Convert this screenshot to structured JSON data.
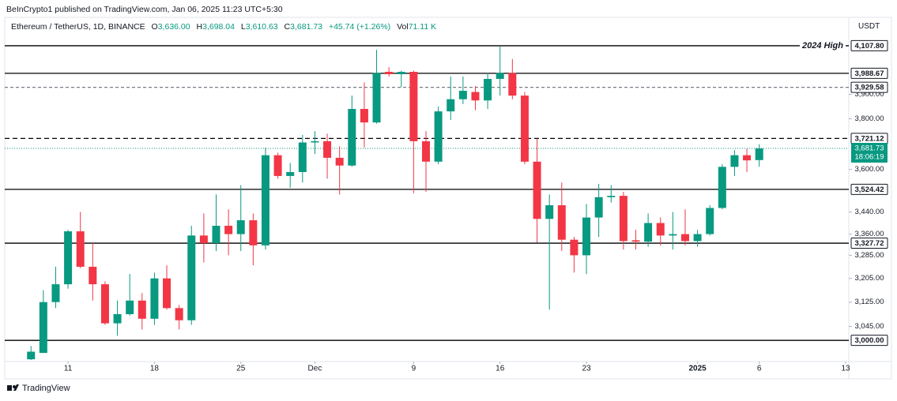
{
  "publisher": "BeInCrypto1 published on TradingView.com, Jan 06, 2025 11:23 UTC+5:30",
  "legend": {
    "symbol": "Ethereum / TetherUS, 1D, BINANCE",
    "ohlc": [
      {
        "key": "O",
        "value": "3,636.00"
      },
      {
        "key": "H",
        "value": "3,698.04"
      },
      {
        "key": "L",
        "value": "3,610.63"
      },
      {
        "key": "C",
        "value": "3,681.73"
      }
    ],
    "change": "+45.74 (+1.26%)",
    "vol_key": "Vol",
    "vol": "71.11 K"
  },
  "currency": "USDT",
  "footer": "TradingView",
  "chart_data": {
    "type": "candlestick",
    "log": true,
    "grid": false,
    "up_color": "#089981",
    "down_color": "#f23645",
    "x": [
      "2024-11-08",
      "2024-11-09",
      "2024-11-10",
      "2024-11-11",
      "2024-11-12",
      "2024-11-13",
      "2024-11-14",
      "2024-11-15",
      "2024-11-16",
      "2024-11-17",
      "2024-11-18",
      "2024-11-19",
      "2024-11-20",
      "2024-11-21",
      "2024-11-22",
      "2024-11-23",
      "2024-11-24",
      "2024-11-25",
      "2024-11-26",
      "2024-11-27",
      "2024-11-28",
      "2024-11-29",
      "2024-11-30",
      "2024-12-01",
      "2024-12-02",
      "2024-12-03",
      "2024-12-04",
      "2024-12-05",
      "2024-12-06",
      "2024-12-07",
      "2024-12-08",
      "2024-12-09",
      "2024-12-10",
      "2024-12-11",
      "2024-12-12",
      "2024-12-13",
      "2024-12-14",
      "2024-12-15",
      "2024-12-16",
      "2024-12-17",
      "2024-12-18",
      "2024-12-19",
      "2024-12-20",
      "2024-12-21",
      "2024-12-22",
      "2024-12-23",
      "2024-12-24",
      "2024-12-25",
      "2024-12-26",
      "2024-12-27",
      "2024-12-28",
      "2024-12-29",
      "2024-12-30",
      "2024-12-31",
      "2025-01-01",
      "2025-01-02",
      "2025-01-03",
      "2025-01-04",
      "2025-01-05",
      "2025-01-06"
    ],
    "open": [
      2940,
      2960,
      3125,
      3185,
      3370,
      3245,
      3185,
      3055,
      3085,
      3130,
      3070,
      3205,
      3105,
      3065,
      3355,
      3328,
      3390,
      3360,
      3410,
      3320,
      3655,
      3575,
      3590,
      3705,
      3710,
      3645,
      3615,
      3840,
      3785,
      3995,
      3985,
      3995,
      3710,
      3630,
      3830,
      3880,
      3910,
      3875,
      3965,
      3990,
      3895,
      3630,
      3415,
      3465,
      3340,
      3285,
      3420,
      3495,
      3500,
      3338,
      3333,
      3400,
      3355,
      3360,
      3335,
      3360,
      3455,
      3610,
      3655,
      3636
    ],
    "high": [
      2982,
      3165,
      3245,
      3375,
      3440,
      3328,
      3195,
      3130,
      3220,
      3155,
      3225,
      3250,
      3115,
      3390,
      3435,
      3505,
      3450,
      3540,
      3435,
      3685,
      3665,
      3625,
      3735,
      3750,
      3740,
      3690,
      3895,
      3950,
      4090,
      4015,
      4000,
      4000,
      3750,
      3850,
      3975,
      3975,
      3935,
      3990,
      4108,
      4050,
      3910,
      3720,
      3505,
      3550,
      3350,
      3470,
      3545,
      3540,
      3515,
      3375,
      3435,
      3420,
      3440,
      3450,
      3375,
      3465,
      3620,
      3675,
      3680,
      3698.04
    ],
    "low": [
      2938,
      2960,
      3105,
      3170,
      3240,
      3130,
      3050,
      3015,
      3080,
      3035,
      3050,
      3100,
      3035,
      3050,
      3260,
      3300,
      3285,
      3300,
      3250,
      3305,
      3565,
      3530,
      3550,
      3660,
      3565,
      3505,
      3610,
      3685,
      3780,
      3975,
      3930,
      3510,
      3515,
      3620,
      3795,
      3860,
      3835,
      3840,
      3895,
      3880,
      3620,
      3330,
      3100,
      3300,
      3225,
      3220,
      3350,
      3475,
      3305,
      3305,
      3315,
      3320,
      3305,
      3320,
      3315,
      3355,
      3450,
      3575,
      3590,
      3610.63
    ],
    "close": [
      2964,
      3125,
      3185,
      3370,
      3245,
      3185,
      3055,
      3085,
      3130,
      3070,
      3205,
      3105,
      3065,
      3355,
      3328,
      3390,
      3360,
      3410,
      3320,
      3655,
      3575,
      3590,
      3705,
      3710,
      3645,
      3615,
      3840,
      3785,
      3990,
      3985,
      3995,
      3710,
      3630,
      3830,
      3880,
      3915,
      3875,
      3965,
      3990,
      3895,
      3630,
      3415,
      3465,
      3340,
      3285,
      3420,
      3495,
      3500,
      3335,
      3333,
      3400,
      3355,
      3360,
      3335,
      3360,
      3455,
      3610,
      3655,
      3635,
      3681.73
    ],
    "xlim": [
      "2024-11-06",
      "2025-01-13"
    ],
    "xticks": [
      {
        "value": "2024-11-11",
        "label": "11"
      },
      {
        "value": "2024-11-18",
        "label": "18"
      },
      {
        "value": "2024-11-25",
        "label": "25"
      },
      {
        "value": "2024-12-01",
        "label": "Dec"
      },
      {
        "value": "2024-12-09",
        "label": "9"
      },
      {
        "value": "2024-12-16",
        "label": "16"
      },
      {
        "value": "2024-12-23",
        "label": "23"
      },
      {
        "value": "2025-01-01",
        "label": "2025"
      },
      {
        "value": "2025-01-06",
        "label": "6"
      },
      {
        "value": "2025-01-13",
        "label": "13"
      }
    ],
    "ylim": [
      2933,
      4234
    ],
    "yticks": [
      {
        "value": 3045,
        "label": "3,045.00"
      },
      {
        "value": 3125,
        "label": "3,125.00"
      },
      {
        "value": 3205,
        "label": "3,205.00"
      },
      {
        "value": 3285,
        "label": "3,285.00"
      },
      {
        "value": 3360,
        "label": "3,360.00"
      },
      {
        "value": 3440,
        "label": "3,440.00"
      },
      {
        "value": 3600,
        "label": "3,600.00"
      },
      {
        "value": 3800,
        "label": "3,800.00"
      },
      {
        "value": 3900,
        "label": "3,900.00"
      }
    ],
    "levels": [
      {
        "value": 4107.8,
        "label": "4,107.80",
        "style": "solid",
        "color": "#000000",
        "text": "2024 High"
      },
      {
        "value": 3988.67,
        "label": "3,988.67",
        "style": "solid",
        "color": "#000000"
      },
      {
        "value": 3929.58,
        "label": "3,929.58",
        "style": "dashed",
        "color": "#787b86"
      },
      {
        "value": 3721.12,
        "label": "3,721.12",
        "style": "dashed",
        "color": "#000000"
      },
      {
        "value": 3524.42,
        "label": "3,524.42",
        "style": "solid",
        "color": "#000000"
      },
      {
        "value": 3327.72,
        "label": "3,327.72",
        "style": "solid",
        "color": "#000000"
      },
      {
        "value": 3000,
        "label": "3,000.00",
        "style": "solid",
        "color": "#000000"
      }
    ],
    "last": {
      "value": 3681.73,
      "label": "3,681.73",
      "countdown": "18:06:19",
      "color": "#089981"
    }
  }
}
